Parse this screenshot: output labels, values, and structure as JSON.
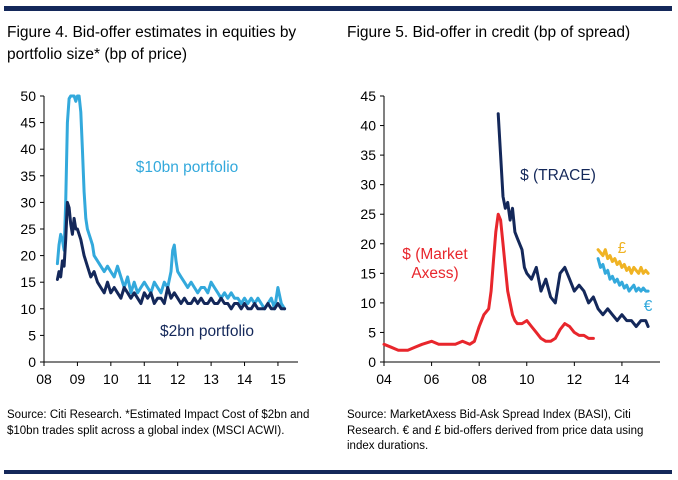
{
  "fig4": {
    "title": "Figure 4. Bid-offer estimates in equities by portfolio size* (bp of price)",
    "source": "Source: Citi Research. *Estimated Impact Cost of $2bn and $10bn trades split across a global index (MSCI ACWI)."
  },
  "fig5": {
    "title": "Figure 5. Bid-offer in credit (bp of spread)",
    "source": "Source: MarketAxess Bid-Ask Spread Index (BASI), Citi Research. € and £ bid-offers derived from price data using index durations."
  },
  "colors": {
    "navy": "#14285a",
    "lightblue": "#33a9dc",
    "red": "#e8262c",
    "gold": "#f0b323"
  },
  "chart_data": [
    {
      "type": "line",
      "title": "Figure 4. Bid-offer estimates in equities by portfolio size* (bp of price)",
      "xlabel": "",
      "ylabel": "",
      "xlim": [
        2008,
        2015.6
      ],
      "ylim": [
        0,
        50
      ],
      "xticks": [
        2008,
        2009,
        2010,
        2011,
        2012,
        2013,
        2014,
        2015
      ],
      "xtick_labels": [
        "08",
        "09",
        "10",
        "11",
        "12",
        "13",
        "14",
        "15"
      ],
      "yticks": [
        0,
        5,
        10,
        15,
        20,
        25,
        30,
        35,
        40,
        45,
        50
      ],
      "grid": false,
      "series": [
        {
          "name": "$10bn portfolio",
          "color": "#33a9dc",
          "x": [
            2008.4,
            2008.45,
            2008.5,
            2008.55,
            2008.6,
            2008.65,
            2008.7,
            2008.75,
            2008.8,
            2008.85,
            2008.9,
            2008.95,
            2009.0,
            2009.05,
            2009.1,
            2009.15,
            2009.2,
            2009.25,
            2009.3,
            2009.35,
            2009.4,
            2009.45,
            2009.5,
            2009.6,
            2009.7,
            2009.8,
            2009.9,
            2010.0,
            2010.1,
            2010.2,
            2010.3,
            2010.4,
            2010.5,
            2010.6,
            2010.7,
            2010.8,
            2010.9,
            2011.0,
            2011.1,
            2011.2,
            2011.3,
            2011.4,
            2011.5,
            2011.6,
            2011.7,
            2011.8,
            2011.85,
            2011.9,
            2011.95,
            2012.0,
            2012.1,
            2012.2,
            2012.3,
            2012.4,
            2012.5,
            2012.6,
            2012.7,
            2012.8,
            2012.9,
            2013.0,
            2013.1,
            2013.2,
            2013.3,
            2013.4,
            2013.5,
            2013.6,
            2013.7,
            2013.8,
            2013.9,
            2014.0,
            2014.1,
            2014.2,
            2014.3,
            2014.4,
            2014.5,
            2014.6,
            2014.7,
            2014.8,
            2014.9,
            2015.0,
            2015.1,
            2015.2
          ],
          "y": [
            18.5,
            22,
            24,
            23,
            21,
            30,
            45,
            49.5,
            50,
            50,
            50,
            49,
            50,
            50,
            47,
            40,
            32,
            27,
            25,
            24,
            23,
            22,
            20,
            19,
            18,
            17,
            18,
            17,
            16,
            18,
            16,
            14,
            16,
            13,
            15,
            13,
            14,
            15,
            14,
            13,
            15,
            14,
            13,
            15,
            14,
            17,
            21,
            22,
            19,
            17,
            16,
            15,
            14,
            15,
            14,
            13,
            14,
            14,
            13,
            15,
            14,
            13,
            12,
            13,
            12,
            13,
            12,
            12,
            11,
            12,
            11,
            12,
            11,
            12,
            11,
            10,
            11,
            12,
            10,
            14,
            11,
            10
          ]
        },
        {
          "name": "$2bn portfolio",
          "color": "#14285a",
          "x": [
            2008.4,
            2008.45,
            2008.5,
            2008.55,
            2008.6,
            2008.65,
            2008.7,
            2008.75,
            2008.8,
            2008.85,
            2008.9,
            2008.95,
            2009.0,
            2009.1,
            2009.2,
            2009.3,
            2009.4,
            2009.5,
            2009.6,
            2009.7,
            2009.8,
            2009.9,
            2010.0,
            2010.1,
            2010.2,
            2010.3,
            2010.4,
            2010.5,
            2010.6,
            2010.7,
            2010.8,
            2010.9,
            2011.0,
            2011.1,
            2011.2,
            2011.3,
            2011.4,
            2011.5,
            2011.6,
            2011.7,
            2011.8,
            2011.9,
            2012.0,
            2012.1,
            2012.2,
            2012.3,
            2012.4,
            2012.5,
            2012.6,
            2012.7,
            2012.8,
            2012.9,
            2013.0,
            2013.1,
            2013.2,
            2013.3,
            2013.4,
            2013.5,
            2013.6,
            2013.7,
            2013.8,
            2013.9,
            2014.0,
            2014.1,
            2014.2,
            2014.3,
            2014.4,
            2014.5,
            2014.6,
            2014.7,
            2014.8,
            2014.9,
            2015.0,
            2015.1,
            2015.2
          ],
          "y": [
            15.5,
            17,
            16,
            19,
            18,
            23,
            30,
            29,
            26,
            24,
            27,
            25,
            25,
            23,
            20,
            18,
            16,
            17,
            15,
            14,
            13,
            15,
            13,
            14,
            13,
            12,
            14,
            13,
            12,
            13,
            12,
            11,
            13,
            12,
            13,
            11,
            12,
            12,
            11,
            14,
            12,
            13,
            12,
            11,
            12,
            11,
            11,
            12,
            11,
            12,
            11,
            11,
            12,
            11,
            11,
            12,
            11,
            11,
            10,
            11,
            11,
            10,
            11,
            10,
            10,
            11,
            10,
            10,
            10,
            11,
            10,
            10,
            11,
            10,
            10
          ]
        }
      ],
      "annotations": [
        "$10bn portfolio",
        "$2bn portfolio"
      ]
    },
    {
      "type": "line",
      "title": "Figure 5. Bid-offer in credit (bp of spread)",
      "xlabel": "",
      "ylabel": "",
      "xlim": [
        2004,
        2015.6
      ],
      "ylim": [
        0,
        45
      ],
      "xticks": [
        2004,
        2006,
        2008,
        2010,
        2012,
        2014
      ],
      "xtick_labels": [
        "04",
        "06",
        "08",
        "10",
        "12",
        "14"
      ],
      "yticks": [
        0,
        5,
        10,
        15,
        20,
        25,
        30,
        35,
        40,
        45
      ],
      "grid": false,
      "series": [
        {
          "name": "$ (TRACE)",
          "color": "#14285a",
          "x": [
            2008.8,
            2008.9,
            2009.0,
            2009.1,
            2009.2,
            2009.3,
            2009.4,
            2009.5,
            2009.6,
            2009.7,
            2009.8,
            2009.9,
            2010.0,
            2010.2,
            2010.4,
            2010.6,
            2010.8,
            2011.0,
            2011.2,
            2011.4,
            2011.6,
            2011.8,
            2012.0,
            2012.2,
            2012.4,
            2012.6,
            2012.8,
            2013.0,
            2013.2,
            2013.4,
            2013.6,
            2013.8,
            2014.0,
            2014.2,
            2014.4,
            2014.6,
            2014.8,
            2015.0,
            2015.1
          ],
          "y": [
            42,
            35,
            28,
            26,
            27,
            24,
            26,
            22,
            21,
            20,
            19,
            16,
            15,
            14,
            16,
            12,
            14,
            11,
            10,
            15,
            16,
            14,
            12,
            13,
            12,
            10,
            11,
            9,
            8,
            9,
            8,
            7,
            8,
            7,
            7,
            6,
            7,
            7,
            6
          ]
        },
        {
          "name": "$ (Market Axess)",
          "color": "#e8262c",
          "x": [
            2004.0,
            2004.3,
            2004.6,
            2005.0,
            2005.3,
            2005.6,
            2006.0,
            2006.3,
            2006.6,
            2007.0,
            2007.3,
            2007.6,
            2007.8,
            2008.0,
            2008.2,
            2008.4,
            2008.5,
            2008.6,
            2008.7,
            2008.8,
            2008.9,
            2009.0,
            2009.1,
            2009.2,
            2009.3,
            2009.4,
            2009.5,
            2009.6,
            2009.8,
            2010.0,
            2010.2,
            2010.4,
            2010.6,
            2010.8,
            2011.0,
            2011.2,
            2011.4,
            2011.6,
            2011.8,
            2012.0,
            2012.2,
            2012.4,
            2012.6,
            2012.8
          ],
          "y": [
            3,
            2.5,
            2,
            2,
            2.5,
            3,
            3.5,
            3,
            3,
            3,
            3.5,
            3,
            3.5,
            6,
            8,
            9,
            12,
            17,
            22,
            25,
            24,
            20,
            16,
            12,
            10,
            8,
            7,
            6.5,
            6.5,
            7,
            6,
            5,
            4,
            3.5,
            3.5,
            4,
            5.5,
            6.5,
            6,
            5,
            4.5,
            4.5,
            4,
            4
          ]
        },
        {
          "name": "£",
          "color": "#f0b323",
          "x": [
            2013.0,
            2013.1,
            2013.2,
            2013.3,
            2013.4,
            2013.5,
            2013.6,
            2013.7,
            2013.8,
            2013.9,
            2014.0,
            2014.1,
            2014.2,
            2014.3,
            2014.4,
            2014.5,
            2014.6,
            2014.7,
            2014.8,
            2014.9,
            2015.0,
            2015.1
          ],
          "y": [
            19,
            18.5,
            18,
            19,
            17.5,
            18,
            17,
            17.5,
            16.5,
            17,
            16,
            16.5,
            15.5,
            16,
            15,
            16,
            15.5,
            15,
            16,
            15,
            15.5,
            15
          ]
        },
        {
          "name": "€",
          "color": "#33a9dc",
          "x": [
            2013.0,
            2013.1,
            2013.2,
            2013.3,
            2013.4,
            2013.5,
            2013.6,
            2013.7,
            2013.8,
            2013.9,
            2014.0,
            2014.1,
            2014.2,
            2014.3,
            2014.4,
            2014.5,
            2014.6,
            2014.7,
            2014.8,
            2014.9,
            2015.0,
            2015.1
          ],
          "y": [
            17.5,
            16,
            16.5,
            15,
            15.5,
            14,
            14.5,
            13.5,
            14,
            13,
            13.5,
            12.5,
            13,
            12,
            12.5,
            13,
            12,
            12.5,
            12,
            12.5,
            12,
            12
          ]
        }
      ],
      "annotations": [
        "$ (TRACE)",
        "$ (Market Axess)",
        "£",
        "€"
      ]
    }
  ]
}
